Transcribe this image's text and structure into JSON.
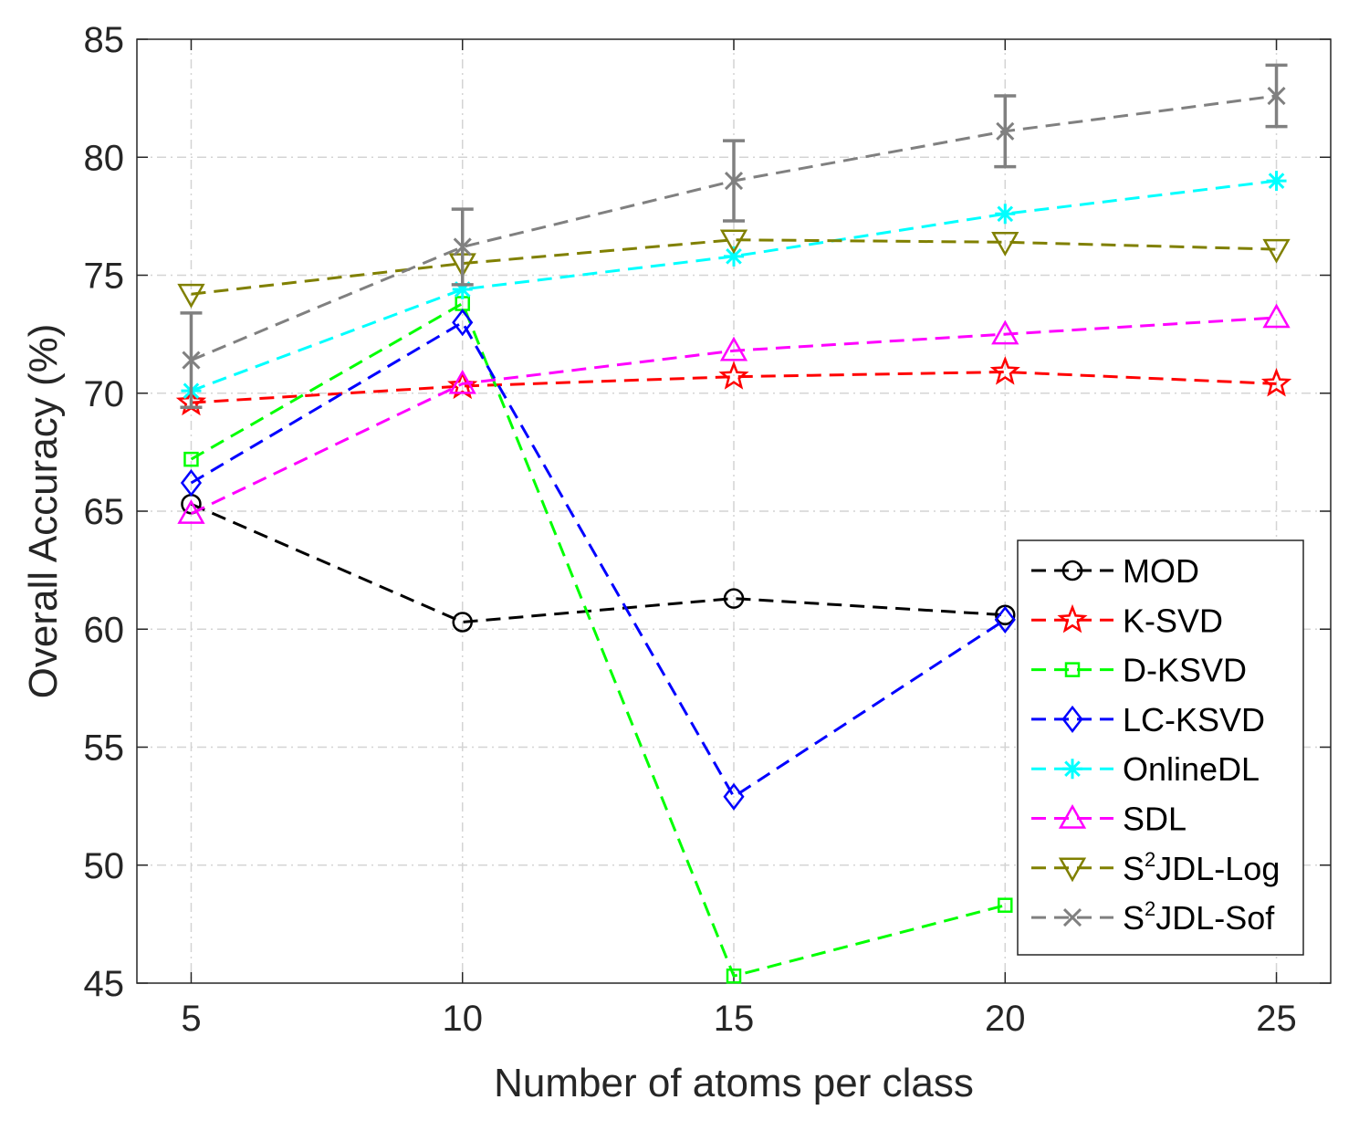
{
  "chart_data": {
    "type": "line",
    "title": "",
    "xlabel": "Number of atoms per class",
    "ylabel": "Overall Accuracy (%)",
    "x": [
      5,
      10,
      15,
      20,
      25
    ],
    "x_ticks": [
      "5",
      "10",
      "15",
      "20",
      "25"
    ],
    "y_ticks": [
      "45",
      "50",
      "55",
      "60",
      "65",
      "70",
      "75",
      "80",
      "85"
    ],
    "xlim": [
      4,
      26
    ],
    "ylim": [
      45,
      85
    ],
    "grid": true,
    "legend_position": "bottom-right",
    "series": [
      {
        "name": "MOD",
        "legend_base": "MOD",
        "legend_sup": "",
        "legend_rest": "",
        "color": "#000000",
        "marker": "circle",
        "values": [
          65.3,
          60.3,
          61.3,
          60.6,
          null
        ]
      },
      {
        "name": "K-SVD",
        "legend_base": "K-SVD",
        "legend_sup": "",
        "legend_rest": "",
        "color": "#ff0000",
        "marker": "star",
        "values": [
          69.6,
          70.3,
          70.7,
          70.9,
          70.4
        ]
      },
      {
        "name": "D-KSVD",
        "legend_base": "D-KSVD",
        "legend_sup": "",
        "legend_rest": "",
        "color": "#00ff00",
        "marker": "square",
        "values": [
          67.2,
          73.8,
          45.3,
          48.3,
          null
        ]
      },
      {
        "name": "LC-KSVD",
        "legend_base": "LC-KSVD",
        "legend_sup": "",
        "legend_rest": "",
        "color": "#0000ff",
        "marker": "diamond",
        "values": [
          66.2,
          73.0,
          52.9,
          60.4,
          null
        ]
      },
      {
        "name": "OnlineDL",
        "legend_base": "OnlineDL",
        "legend_sup": "",
        "legend_rest": "",
        "color": "#00ffff",
        "marker": "asterisk",
        "values": [
          70.1,
          74.4,
          75.8,
          77.6,
          79.0
        ]
      },
      {
        "name": "SDL",
        "legend_base": "SDL",
        "legend_sup": "",
        "legend_rest": "",
        "color": "#ff00ff",
        "marker": "triangle-up",
        "values": [
          64.9,
          70.4,
          71.8,
          72.5,
          73.2
        ]
      },
      {
        "name": "S2JDL-Log",
        "legend_base": "S",
        "legend_sup": "2",
        "legend_rest": "JDL-Log",
        "color": "#808000",
        "marker": "triangle-down",
        "values": [
          74.2,
          75.5,
          76.5,
          76.4,
          76.1
        ]
      },
      {
        "name": "S2JDL-Sof",
        "legend_base": "S",
        "legend_sup": "2",
        "legend_rest": "JDL-Sof",
        "color": "#808080",
        "marker": "x",
        "values": [
          71.4,
          76.2,
          79.0,
          81.1,
          82.6
        ],
        "error": [
          2.0,
          1.6,
          1.7,
          1.5,
          1.3
        ]
      }
    ]
  }
}
